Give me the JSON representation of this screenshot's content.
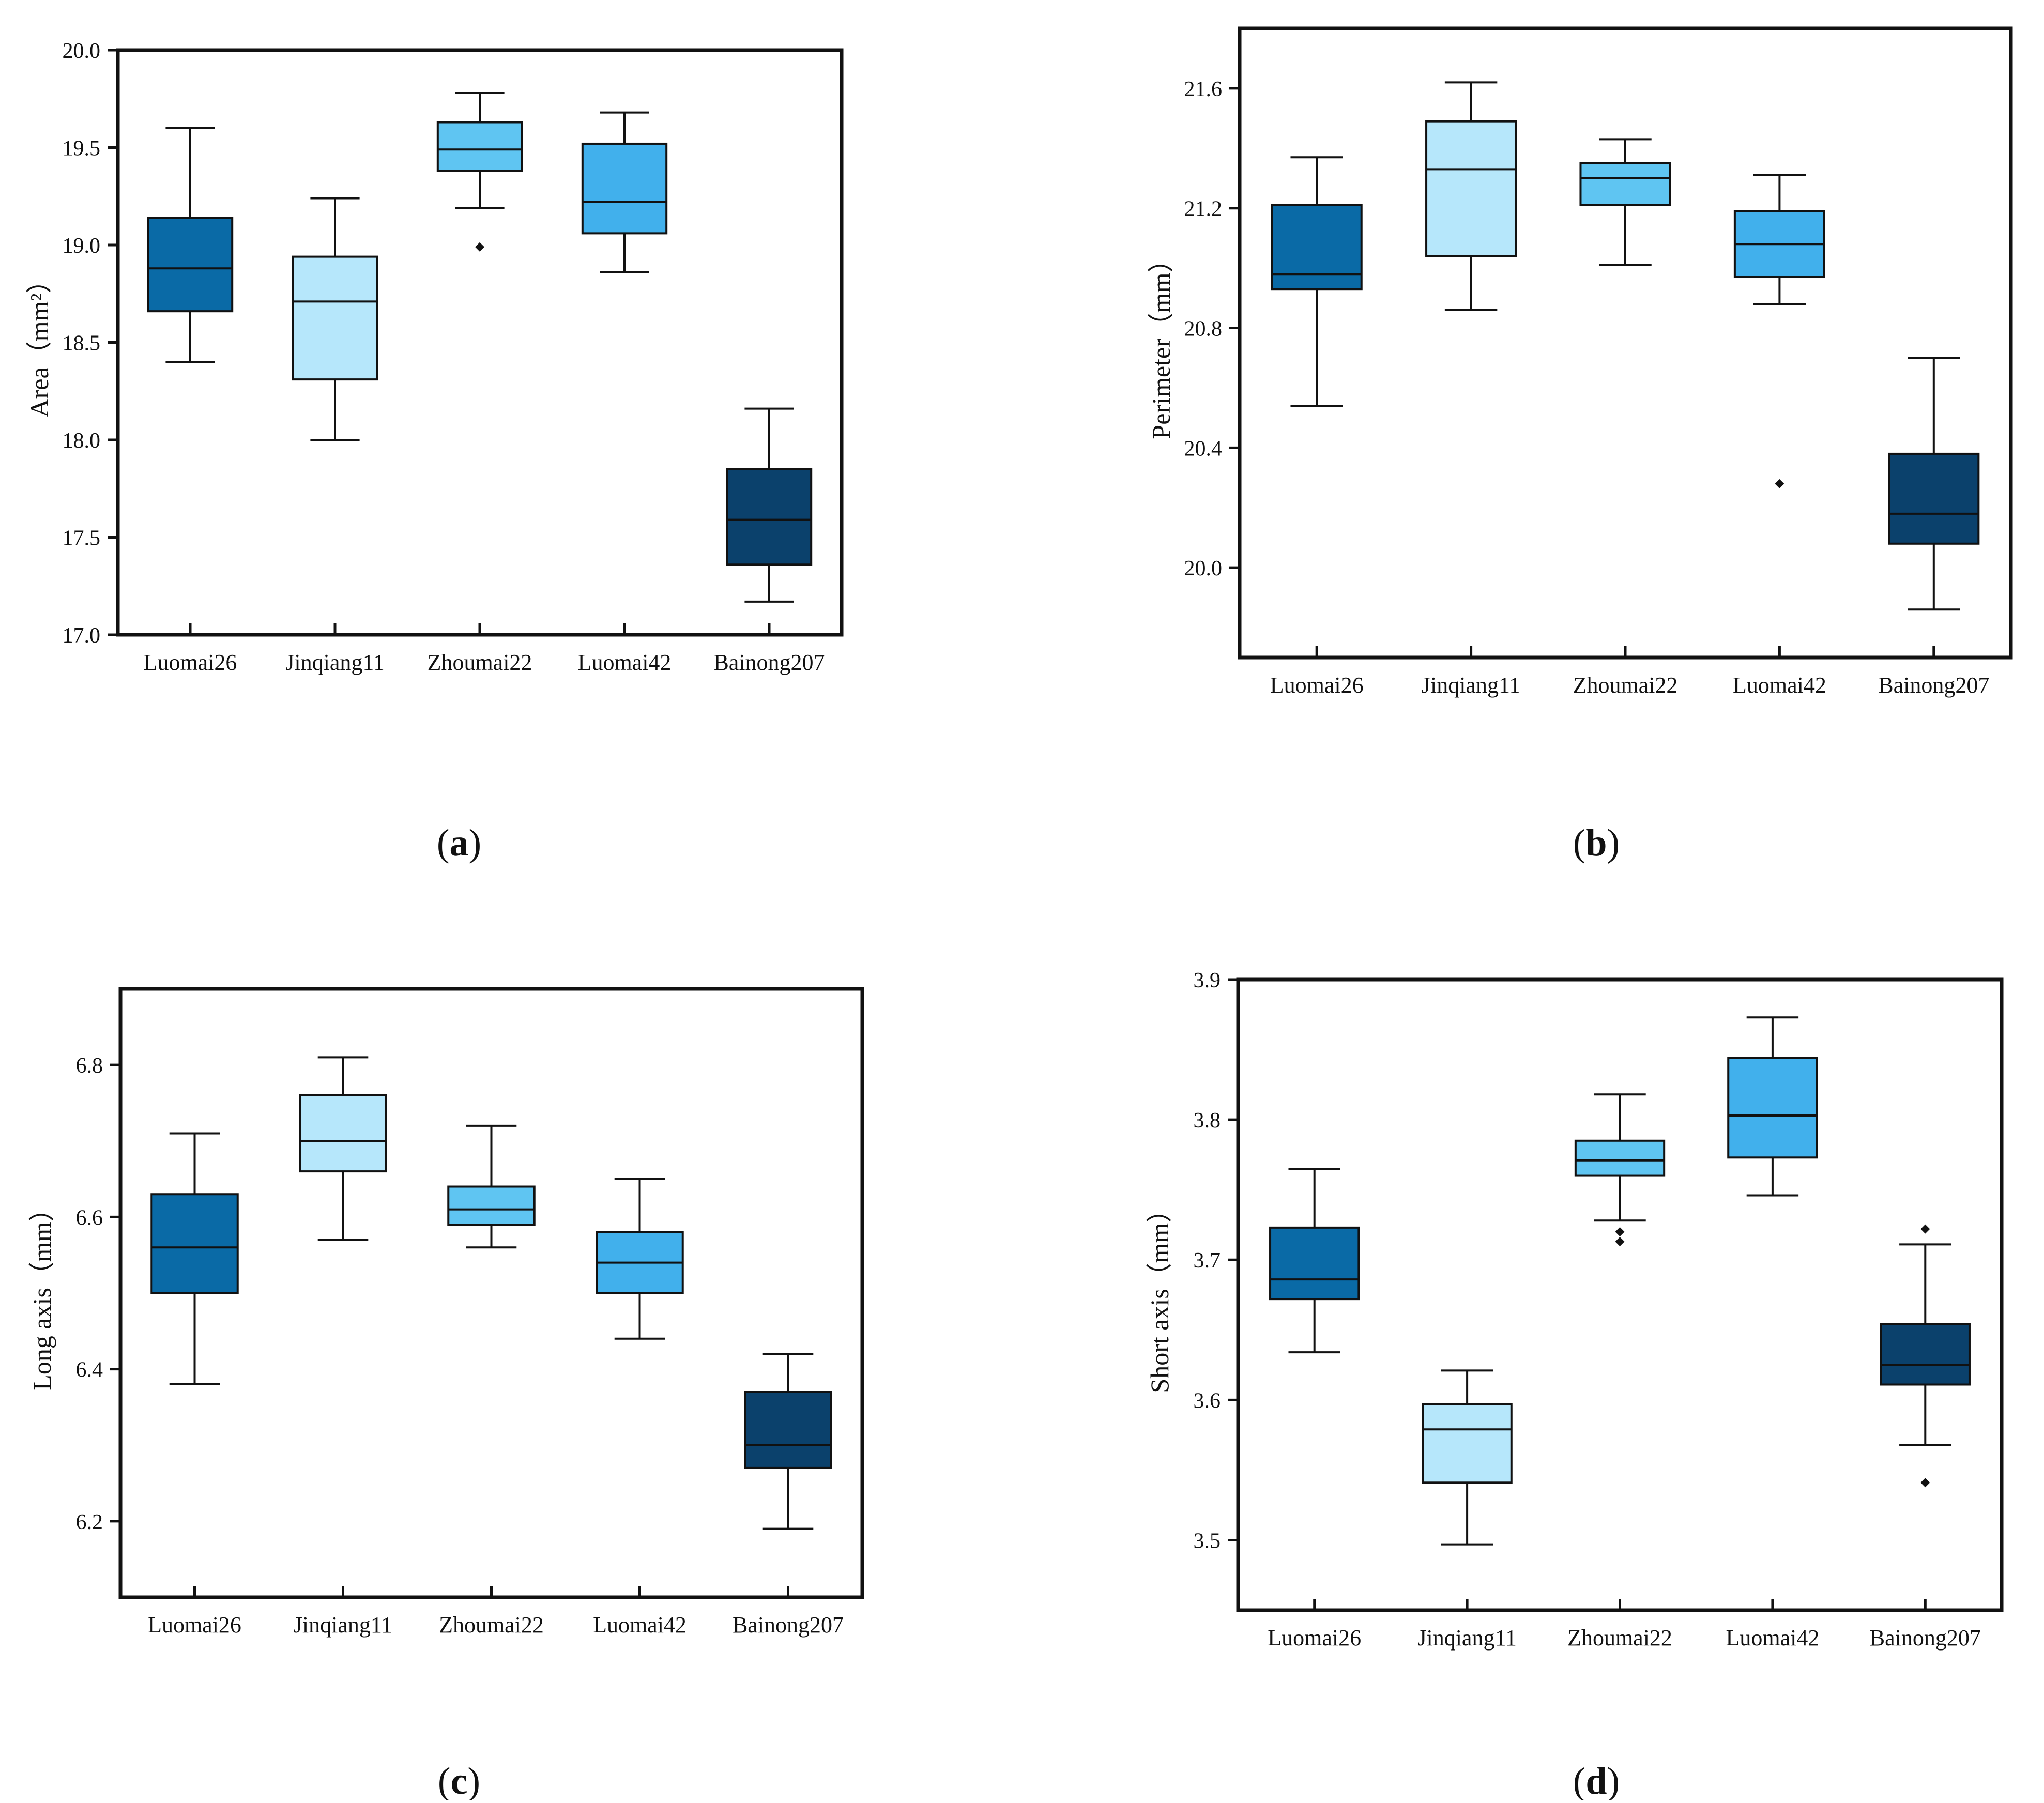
{
  "colors": {
    "dark_blue": "#0a6aa6",
    "light_blue": "#b6e7fb",
    "sky_blue": "#5fc5f2",
    "medium_blue": "#41b0ec",
    "navy": "#0b416c",
    "axis": "#111111"
  },
  "chart_data": [
    {
      "panel": "a",
      "type": "box",
      "caption": "(a)",
      "caption_letter": "a",
      "ylabel": "Area（mm²）",
      "ylim": [
        17.0,
        20.0
      ],
      "yticks": [
        "17.0",
        "17.5",
        "18.0",
        "18.5",
        "19.0",
        "19.5",
        "20.0"
      ],
      "categories": [
        "Luomai26",
        "Jinqiang11",
        "Zhoumai22",
        "Luomai42",
        "Bainong207"
      ],
      "fill": [
        "#0a6aa6",
        "#b6e7fb",
        "#5fc5f2",
        "#41b0ec",
        "#0b416c"
      ],
      "boxes": [
        {
          "whisker_low": 18.4,
          "q1": 18.66,
          "median": 18.88,
          "q3": 19.14,
          "whisker_high": 19.6,
          "outliers": []
        },
        {
          "whisker_low": 18.0,
          "q1": 18.31,
          "median": 18.71,
          "q3": 18.94,
          "whisker_high": 19.24,
          "outliers": []
        },
        {
          "whisker_low": 19.19,
          "q1": 19.38,
          "median": 19.49,
          "q3": 19.63,
          "whisker_high": 19.78,
          "outliers": [
            18.99
          ]
        },
        {
          "whisker_low": 18.86,
          "q1": 19.06,
          "median": 19.22,
          "q3": 19.52,
          "whisker_high": 19.68,
          "outliers": []
        },
        {
          "whisker_low": 17.17,
          "q1": 17.36,
          "median": 17.59,
          "q3": 17.85,
          "whisker_high": 18.16,
          "outliers": []
        }
      ]
    },
    {
      "panel": "b",
      "type": "box",
      "caption": "(b)",
      "caption_letter": "b",
      "ylabel": "Perimeter（mm）",
      "ylim": [
        19.7,
        21.8
      ],
      "yticks": [
        "20.0",
        "20.4",
        "20.8",
        "21.2",
        "21.6"
      ],
      "categories": [
        "Luomai26",
        "Jinqiang11",
        "Zhoumai22",
        "Luomai42",
        "Bainong207"
      ],
      "fill": [
        "#0a6aa6",
        "#b6e7fb",
        "#5fc5f2",
        "#41b0ec",
        "#0b416c"
      ],
      "boxes": [
        {
          "whisker_low": 20.54,
          "q1": 20.93,
          "median": 20.98,
          "q3": 21.21,
          "whisker_high": 21.37,
          "outliers": []
        },
        {
          "whisker_low": 20.86,
          "q1": 21.04,
          "median": 21.33,
          "q3": 21.49,
          "whisker_high": 21.62,
          "outliers": []
        },
        {
          "whisker_low": 21.01,
          "q1": 21.21,
          "median": 21.3,
          "q3": 21.35,
          "whisker_high": 21.43,
          "outliers": []
        },
        {
          "whisker_low": 20.88,
          "q1": 20.97,
          "median": 21.08,
          "q3": 21.19,
          "whisker_high": 21.31,
          "outliers": [
            20.28
          ]
        },
        {
          "whisker_low": 19.86,
          "q1": 20.08,
          "median": 20.18,
          "q3": 20.38,
          "whisker_high": 20.7,
          "outliers": []
        }
      ]
    },
    {
      "panel": "c",
      "type": "box",
      "caption": "(c)",
      "caption_letter": "c",
      "ylabel": "Long axis（mm）",
      "ylim": [
        6.1,
        6.9
      ],
      "yticks": [
        "6.2",
        "6.4",
        "6.6",
        "6.8"
      ],
      "categories": [
        "Luomai26",
        "Jinqiang11",
        "Zhoumai22",
        "Luomai42",
        "Bainong207"
      ],
      "fill": [
        "#0a6aa6",
        "#b6e7fb",
        "#5fc5f2",
        "#41b0ec",
        "#0b416c"
      ],
      "boxes": [
        {
          "whisker_low": 6.38,
          "q1": 6.5,
          "median": 6.56,
          "q3": 6.63,
          "whisker_high": 6.71,
          "outliers": []
        },
        {
          "whisker_low": 6.57,
          "q1": 6.66,
          "median": 6.7,
          "q3": 6.76,
          "whisker_high": 6.81,
          "outliers": []
        },
        {
          "whisker_low": 6.56,
          "q1": 6.59,
          "median": 6.61,
          "q3": 6.64,
          "whisker_high": 6.72,
          "outliers": []
        },
        {
          "whisker_low": 6.44,
          "q1": 6.5,
          "median": 6.54,
          "q3": 6.58,
          "whisker_high": 6.65,
          "outliers": []
        },
        {
          "whisker_low": 6.19,
          "q1": 6.27,
          "median": 6.3,
          "q3": 6.37,
          "whisker_high": 6.42,
          "outliers": []
        }
      ]
    },
    {
      "panel": "d",
      "type": "box",
      "caption": "(d)",
      "caption_letter": "d",
      "ylabel": "Short axis（mm）",
      "ylim": [
        3.45,
        3.9
      ],
      "yticks": [
        "3.5",
        "3.6",
        "3.7",
        "3.8",
        "3.9"
      ],
      "categories": [
        "Luomai26",
        "Jinqiang11",
        "Zhoumai22",
        "Luomai42",
        "Bainong207"
      ],
      "fill": [
        "#0a6aa6",
        "#b6e7fb",
        "#5fc5f2",
        "#41b0ec",
        "#0b416c"
      ],
      "boxes": [
        {
          "whisker_low": 3.634,
          "q1": 3.672,
          "median": 3.686,
          "q3": 3.723,
          "whisker_high": 3.765,
          "outliers": []
        },
        {
          "whisker_low": 3.497,
          "q1": 3.541,
          "median": 3.579,
          "q3": 3.597,
          "whisker_high": 3.621,
          "outliers": []
        },
        {
          "whisker_low": 3.728,
          "q1": 3.76,
          "median": 3.771,
          "q3": 3.785,
          "whisker_high": 3.818,
          "outliers": [
            3.72,
            3.713
          ]
        },
        {
          "whisker_low": 3.746,
          "q1": 3.773,
          "median": 3.803,
          "q3": 3.844,
          "whisker_high": 3.873,
          "outliers": []
        },
        {
          "whisker_low": 3.568,
          "q1": 3.611,
          "median": 3.625,
          "q3": 3.654,
          "whisker_high": 3.711,
          "outliers": [
            3.722,
            3.541
          ]
        }
      ]
    }
  ]
}
